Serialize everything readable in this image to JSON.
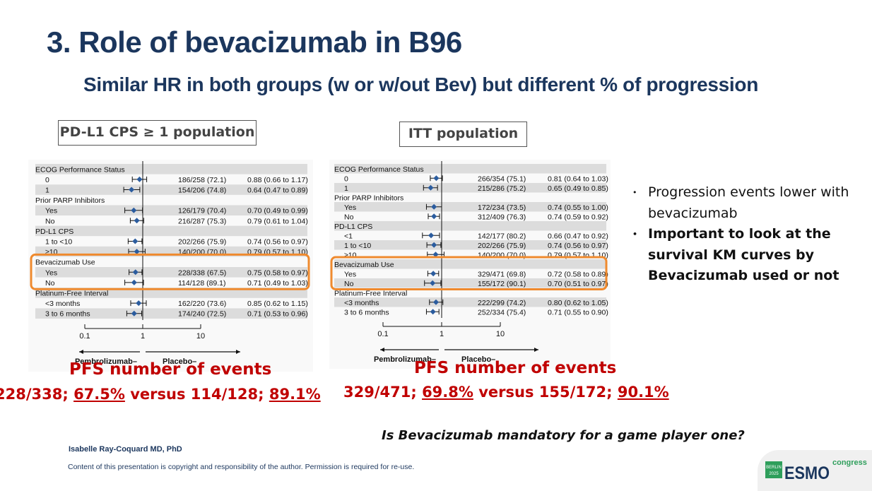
{
  "title": "3. Role of bevacizumab in B96",
  "subtitle": "Similar HR in both groups (w or w/out Bev)  but different % of progression",
  "populations": {
    "left": "PD-L1 CPS ≥ 1 population",
    "right": "ITT population"
  },
  "forest_left": {
    "rows": [
      {
        "label": "ECOG Performance Status",
        "header": true
      },
      {
        "label": "0",
        "events": "186/258 (72.1)",
        "hr_text": "0.88 (0.66 to 1.17)",
        "hr": 0.88,
        "lo": 0.66,
        "hi": 1.17
      },
      {
        "label": "1",
        "events": "154/206 (74.8)",
        "hr_text": "0.64 (0.47 to 0.89)",
        "hr": 0.64,
        "lo": 0.47,
        "hi": 0.89
      },
      {
        "label": "Prior PARP Inhibitors",
        "header": true
      },
      {
        "label": "Yes",
        "events": "126/179 (70.4)",
        "hr_text": "0.70 (0.49 to 0.99)",
        "hr": 0.7,
        "lo": 0.49,
        "hi": 0.99
      },
      {
        "label": "No",
        "events": "216/287 (75.3)",
        "hr_text": "0.79 (0.61 to 1.04)",
        "hr": 0.79,
        "lo": 0.61,
        "hi": 1.04
      },
      {
        "label": "PD-L1 CPS",
        "header": true
      },
      {
        "label": "1 to <10",
        "events": "202/266 (75.9)",
        "hr_text": "0.74 (0.56 to 0.97)",
        "hr": 0.74,
        "lo": 0.56,
        "hi": 0.97
      },
      {
        "label": "≥10",
        "events": "140/200 (70.0)",
        "hr_text": "0.79 (0.57 to 1.10)",
        "hr": 0.79,
        "lo": 0.57,
        "hi": 1.1
      },
      {
        "label": "Bevacizumab Use",
        "header": true
      },
      {
        "label": "Yes",
        "events": "228/338 (67.5)",
        "hr_text": "0.75 (0.58 to 0.97)",
        "hr": 0.75,
        "lo": 0.58,
        "hi": 0.97
      },
      {
        "label": "No",
        "events": "114/128 (89.1)",
        "hr_text": "0.71 (0.49 to 1.03)",
        "hr": 0.71,
        "lo": 0.49,
        "hi": 1.03
      },
      {
        "label": "Platinum-Free Interval",
        "header": true
      },
      {
        "label": "<3 months",
        "events": "162/220 (73.6)",
        "hr_text": "0.85 (0.62 to 1.15)",
        "hr": 0.85,
        "lo": 0.62,
        "hi": 1.15
      },
      {
        "label": "3 to 6 months",
        "events": "174/240 (72.5)",
        "hr_text": "0.71 (0.53 to 0.96)",
        "hr": 0.71,
        "lo": 0.53,
        "hi": 0.96
      }
    ],
    "ticks": [
      "0.1",
      "1",
      "10"
    ],
    "favors_left": "Pembrolizumab–",
    "favors_right": "Placebo–"
  },
  "forest_right": {
    "rows": [
      {
        "label": "ECOG Performance Status",
        "header": true
      },
      {
        "label": "0",
        "events": "266/354 (75.1)",
        "hr_text": "0.81 (0.64 to 1.03)",
        "hr": 0.81,
        "lo": 0.64,
        "hi": 1.03
      },
      {
        "label": "1",
        "events": "215/286 (75.2)",
        "hr_text": "0.65 (0.49 to 0.85)",
        "hr": 0.65,
        "lo": 0.49,
        "hi": 0.85
      },
      {
        "label": "Prior PARP Inhibitors",
        "header": true
      },
      {
        "label": "Yes",
        "events": "172/234 (73.5)",
        "hr_text": "0.74 (0.55 to 1.00)",
        "hr": 0.74,
        "lo": 0.55,
        "hi": 1.0
      },
      {
        "label": "No",
        "events": "312/409 (76.3)",
        "hr_text": "0.74 (0.59 to 0.92)",
        "hr": 0.74,
        "lo": 0.59,
        "hi": 0.92
      },
      {
        "label": "PD-L1 CPS",
        "header": true
      },
      {
        "label": "<1",
        "events": "142/177 (80.2)",
        "hr_text": "0.66 (0.47 to 0.92)",
        "hr": 0.66,
        "lo": 0.47,
        "hi": 0.92
      },
      {
        "label": "1 to <10",
        "events": "202/266 (75.9)",
        "hr_text": "0.74 (0.56 to 0.97)",
        "hr": 0.74,
        "lo": 0.56,
        "hi": 0.97
      },
      {
        "label": "≥10",
        "events": "140/200 (70.0)",
        "hr_text": "0.79 (0.57 to 1.10)",
        "hr": 0.79,
        "lo": 0.57,
        "hi": 1.1
      },
      {
        "label": "Bevacizumab Use",
        "header": true
      },
      {
        "label": "Yes",
        "events": "329/471 (69.8)",
        "hr_text": "0.72 (0.58 to 0.89)",
        "hr": 0.72,
        "lo": 0.58,
        "hi": 0.89
      },
      {
        "label": "No",
        "events": "155/172 (90.1)",
        "hr_text": "0.70 (0.51 to 0.97)",
        "hr": 0.7,
        "lo": 0.51,
        "hi": 0.97
      },
      {
        "label": "Platinum-Free Interval",
        "header": true
      },
      {
        "label": "<3 months",
        "events": "222/299 (74.2)",
        "hr_text": "0.80 (0.62 to 1.05)",
        "hr": 0.8,
        "lo": 0.62,
        "hi": 1.05
      },
      {
        "label": "3 to 6 months",
        "events": "252/334 (75.4)",
        "hr_text": "0.71 (0.55 to 0.90)",
        "hr": 0.71,
        "lo": 0.55,
        "hi": 0.9
      }
    ],
    "ticks": [
      "0.1",
      "1",
      "10"
    ],
    "favors_left": "Pembrolizumab–",
    "favors_right": "Placebo–"
  },
  "pfs_left": {
    "title": "PFS number of events",
    "a": "228/338;",
    "a_pct": "67.5%",
    "mid": "versus 114/128;",
    "b_pct": "89.1%"
  },
  "pfs_right": {
    "title": "PFS number of events",
    "a": "329/471;",
    "a_pct": "69.8%",
    "mid": "versus 155/172;",
    "b_pct": "90.1%"
  },
  "bullets": [
    {
      "text": "Progression events lower with bevacizumab",
      "bold": false
    },
    {
      "text": "Important to look at the survival KM curves by Bevacizumab used or not",
      "bold": true
    }
  ],
  "question": "Is Bevacizumab mandatory for a game player one?",
  "author": "Isabelle Ray-Coquard MD, PhD",
  "copyright": "Content of this presentation is copyright and responsibility of the author. Permission is required for re-use.",
  "logo": {
    "city": "BERLIN",
    "year": "2025",
    "brand": "ESMO",
    "suffix": "congress"
  },
  "colors": {
    "navy": "#1b365d",
    "red": "#c00000",
    "orange": "#ef8a2e",
    "diamond": "#2b5c9e",
    "stripe": "#dcdcdc",
    "logo_green": "#2e9e5b"
  }
}
